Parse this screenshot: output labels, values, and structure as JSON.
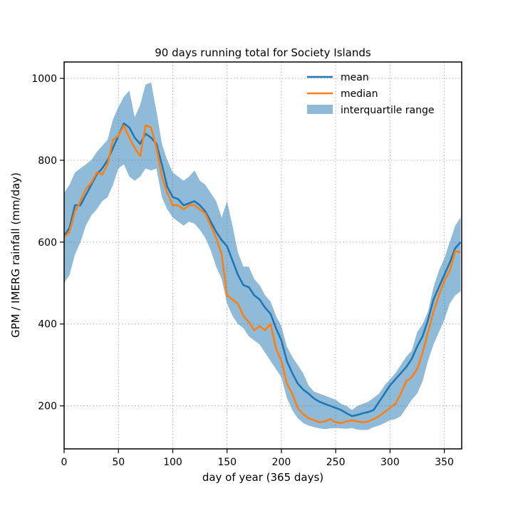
{
  "chart_data": {
    "type": "line",
    "title": "90 days running total for Society Islands",
    "xlabel": "day of year (365 days)",
    "ylabel": "GPM / IMERG rainfall (mm/day)",
    "xlim": [
      0,
      366
    ],
    "ylim": [
      95,
      1040
    ],
    "xticks": [
      0,
      50,
      100,
      150,
      200,
      250,
      300,
      350
    ],
    "yticks": [
      200,
      400,
      600,
      800,
      1000
    ],
    "grid": true,
    "grid_style": "dotted",
    "legend_position": "top-right",
    "colors": {
      "mean": "#1f77b4",
      "median": "#ff7f0e",
      "band": "#1f77b4"
    },
    "series": [
      {
        "name": "mean",
        "kind": "line",
        "x": [
          0,
          5,
          10,
          15,
          20,
          25,
          30,
          35,
          40,
          45,
          50,
          55,
          60,
          65,
          70,
          75,
          80,
          85,
          90,
          95,
          100,
          105,
          110,
          115,
          120,
          125,
          130,
          135,
          140,
          145,
          150,
          155,
          160,
          165,
          170,
          175,
          180,
          185,
          190,
          195,
          200,
          205,
          210,
          215,
          220,
          225,
          230,
          235,
          240,
          245,
          250,
          255,
          260,
          265,
          270,
          275,
          280,
          285,
          290,
          295,
          300,
          305,
          310,
          315,
          320,
          325,
          330,
          335,
          340,
          345,
          350,
          355,
          360,
          365
        ],
        "y": [
          615,
          635,
          690,
          690,
          715,
          740,
          765,
          780,
          800,
          830,
          860,
          890,
          880,
          855,
          840,
          865,
          855,
          840,
          790,
          735,
          710,
          705,
          690,
          695,
          700,
          690,
          675,
          650,
          625,
          605,
          590,
          555,
          520,
          495,
          490,
          470,
          460,
          440,
          425,
          390,
          360,
          310,
          280,
          255,
          240,
          230,
          218,
          210,
          205,
          200,
          195,
          190,
          182,
          175,
          178,
          182,
          185,
          190,
          210,
          230,
          250,
          265,
          280,
          295,
          315,
          345,
          370,
          410,
          460,
          490,
          520,
          550,
          585,
          600
        ]
      },
      {
        "name": "median",
        "kind": "line",
        "x": [
          0,
          5,
          10,
          15,
          20,
          25,
          30,
          35,
          40,
          45,
          50,
          55,
          60,
          65,
          70,
          75,
          80,
          85,
          90,
          95,
          100,
          105,
          110,
          115,
          120,
          125,
          130,
          135,
          140,
          145,
          150,
          155,
          160,
          165,
          170,
          175,
          180,
          185,
          190,
          195,
          200,
          205,
          210,
          215,
          220,
          225,
          230,
          235,
          240,
          245,
          250,
          255,
          260,
          265,
          270,
          275,
          280,
          285,
          290,
          295,
          300,
          305,
          310,
          315,
          320,
          325,
          330,
          335,
          340,
          345,
          350,
          355,
          360,
          365
        ],
        "y": [
          612,
          625,
          675,
          700,
          730,
          745,
          770,
          765,
          790,
          850,
          860,
          885,
          855,
          830,
          810,
          885,
          880,
          830,
          760,
          720,
          690,
          690,
          680,
          690,
          690,
          680,
          670,
          640,
          610,
          570,
          470,
          460,
          450,
          420,
          405,
          385,
          395,
          385,
          400,
          340,
          310,
          255,
          230,
          195,
          180,
          170,
          165,
          160,
          162,
          168,
          160,
          158,
          162,
          165,
          162,
          160,
          162,
          168,
          175,
          185,
          195,
          205,
          230,
          260,
          270,
          290,
          330,
          380,
          430,
          470,
          505,
          530,
          578,
          575
        ]
      },
      {
        "name": "interquartile range",
        "kind": "band",
        "x": [
          0,
          5,
          10,
          15,
          20,
          25,
          30,
          35,
          40,
          45,
          50,
          55,
          60,
          65,
          70,
          75,
          80,
          85,
          90,
          95,
          100,
          105,
          110,
          115,
          120,
          125,
          130,
          135,
          140,
          145,
          150,
          155,
          160,
          165,
          170,
          175,
          180,
          185,
          190,
          195,
          200,
          205,
          210,
          215,
          220,
          225,
          230,
          235,
          240,
          245,
          250,
          255,
          260,
          265,
          270,
          275,
          280,
          285,
          290,
          295,
          300,
          305,
          310,
          315,
          320,
          325,
          330,
          335,
          340,
          345,
          350,
          355,
          360,
          365
        ],
        "upper": [
          720,
          740,
          770,
          780,
          790,
          800,
          820,
          835,
          850,
          900,
          930,
          955,
          970,
          905,
          935,
          985,
          990,
          920,
          840,
          800,
          770,
          760,
          750,
          760,
          775,
          750,
          740,
          720,
          700,
          660,
          700,
          640,
          575,
          540,
          540,
          510,
          495,
          470,
          455,
          420,
          395,
          345,
          320,
          300,
          280,
          250,
          235,
          230,
          225,
          220,
          215,
          205,
          200,
          190,
          200,
          205,
          210,
          220,
          230,
          250,
          265,
          280,
          300,
          320,
          335,
          380,
          400,
          430,
          490,
          530,
          560,
          600,
          640,
          660
        ],
        "lower": [
          500,
          520,
          570,
          600,
          640,
          665,
          680,
          700,
          710,
          740,
          780,
          790,
          760,
          750,
          760,
          780,
          775,
          780,
          710,
          680,
          660,
          650,
          640,
          650,
          645,
          630,
          610,
          580,
          540,
          510,
          450,
          420,
          400,
          390,
          370,
          360,
          350,
          330,
          310,
          290,
          270,
          220,
          190,
          170,
          158,
          152,
          148,
          145,
          143,
          145,
          146,
          145,
          144,
          146,
          142,
          141,
          142,
          148,
          152,
          158,
          165,
          168,
          175,
          195,
          215,
          230,
          260,
          310,
          350,
          380,
          410,
          450,
          470,
          480
        ]
      }
    ]
  }
}
